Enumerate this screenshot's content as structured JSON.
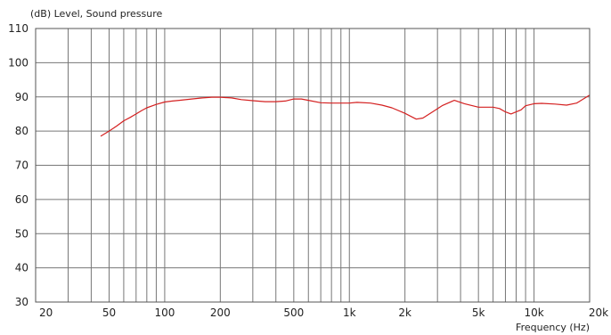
{
  "chart_data": {
    "type": "line",
    "ylabel": "(dB)  Level, Sound pressure",
    "xlabel": "Frequency  (Hz)",
    "x_scale": "log",
    "xlim": [
      20,
      20000
    ],
    "ylim": [
      30,
      110
    ],
    "grid": true,
    "line_color": "#d42020",
    "yticks": [
      "30",
      "40",
      "50",
      "60",
      "70",
      "80",
      "90",
      "100",
      "110"
    ],
    "xticks": [
      {
        "value": 20,
        "label": "20"
      },
      {
        "value": 50,
        "label": "50"
      },
      {
        "value": 100,
        "label": "100"
      },
      {
        "value": 200,
        "label": "200"
      },
      {
        "value": 500,
        "label": "500"
      },
      {
        "value": 1000,
        "label": "1k"
      },
      {
        "value": 2000,
        "label": "2k"
      },
      {
        "value": 5000,
        "label": "5k"
      },
      {
        "value": 10000,
        "label": "10k"
      },
      {
        "value": 20000,
        "label": "20k"
      }
    ],
    "series": [
      {
        "x": [
          45,
          50,
          55,
          60,
          65,
          70,
          75,
          80,
          90,
          100,
          110,
          120,
          140,
          160,
          180,
          200,
          230,
          260,
          300,
          350,
          400,
          450,
          500,
          550,
          600,
          700,
          800,
          900,
          1000,
          1100,
          1300,
          1500,
          1700,
          2000,
          2300,
          2500,
          2800,
          3200,
          3700,
          4200,
          5000,
          6000,
          6500,
          7000,
          7500,
          8000,
          8500,
          9000,
          10000,
          11000,
          13000,
          15000,
          17000,
          20000
        ],
        "values": [
          78.5,
          80,
          81.5,
          83,
          84,
          85,
          86,
          86.8,
          87.8,
          88.5,
          88.8,
          89,
          89.4,
          89.7,
          89.9,
          89.9,
          89.7,
          89.2,
          88.9,
          88.6,
          88.6,
          88.8,
          89.4,
          89.4,
          89,
          88.3,
          88.2,
          88.2,
          88.2,
          88.4,
          88.2,
          87.6,
          86.8,
          85.2,
          83.5,
          83.8,
          85.5,
          87.5,
          89,
          88,
          87,
          87,
          86.6,
          85.6,
          85,
          85.6,
          86.2,
          87.4,
          88,
          88.1,
          87.9,
          87.6,
          88.2,
          90.5
        ]
      }
    ]
  }
}
